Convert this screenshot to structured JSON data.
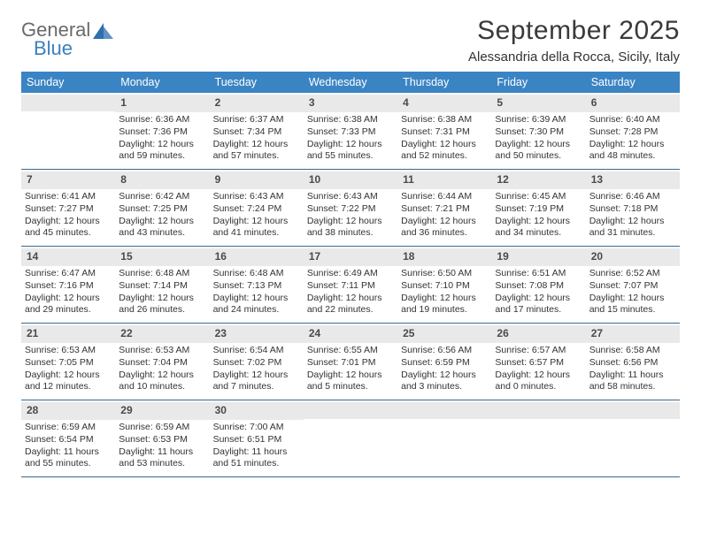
{
  "brand": {
    "name1": "General",
    "name2": "Blue",
    "mark_color": "#2f6fae"
  },
  "header": {
    "month_title": "September 2025",
    "location": "Alessandria della Rocca, Sicily, Italy"
  },
  "colors": {
    "header_bar": "#3b84c4",
    "day_num_bg": "#e9e9e9",
    "row_border": "#3b6a8f",
    "text": "#333333",
    "title": "#3a3a3a"
  },
  "dow": [
    "Sunday",
    "Monday",
    "Tuesday",
    "Wednesday",
    "Thursday",
    "Friday",
    "Saturday"
  ],
  "weeks": [
    [
      {
        "num": "",
        "lines": []
      },
      {
        "num": "1",
        "lines": [
          "Sunrise: 6:36 AM",
          "Sunset: 7:36 PM",
          "Daylight: 12 hours and 59 minutes."
        ]
      },
      {
        "num": "2",
        "lines": [
          "Sunrise: 6:37 AM",
          "Sunset: 7:34 PM",
          "Daylight: 12 hours and 57 minutes."
        ]
      },
      {
        "num": "3",
        "lines": [
          "Sunrise: 6:38 AM",
          "Sunset: 7:33 PM",
          "Daylight: 12 hours and 55 minutes."
        ]
      },
      {
        "num": "4",
        "lines": [
          "Sunrise: 6:38 AM",
          "Sunset: 7:31 PM",
          "Daylight: 12 hours and 52 minutes."
        ]
      },
      {
        "num": "5",
        "lines": [
          "Sunrise: 6:39 AM",
          "Sunset: 7:30 PM",
          "Daylight: 12 hours and 50 minutes."
        ]
      },
      {
        "num": "6",
        "lines": [
          "Sunrise: 6:40 AM",
          "Sunset: 7:28 PM",
          "Daylight: 12 hours and 48 minutes."
        ]
      }
    ],
    [
      {
        "num": "7",
        "lines": [
          "Sunrise: 6:41 AM",
          "Sunset: 7:27 PM",
          "Daylight: 12 hours and 45 minutes."
        ]
      },
      {
        "num": "8",
        "lines": [
          "Sunrise: 6:42 AM",
          "Sunset: 7:25 PM",
          "Daylight: 12 hours and 43 minutes."
        ]
      },
      {
        "num": "9",
        "lines": [
          "Sunrise: 6:43 AM",
          "Sunset: 7:24 PM",
          "Daylight: 12 hours and 41 minutes."
        ]
      },
      {
        "num": "10",
        "lines": [
          "Sunrise: 6:43 AM",
          "Sunset: 7:22 PM",
          "Daylight: 12 hours and 38 minutes."
        ]
      },
      {
        "num": "11",
        "lines": [
          "Sunrise: 6:44 AM",
          "Sunset: 7:21 PM",
          "Daylight: 12 hours and 36 minutes."
        ]
      },
      {
        "num": "12",
        "lines": [
          "Sunrise: 6:45 AM",
          "Sunset: 7:19 PM",
          "Daylight: 12 hours and 34 minutes."
        ]
      },
      {
        "num": "13",
        "lines": [
          "Sunrise: 6:46 AM",
          "Sunset: 7:18 PM",
          "Daylight: 12 hours and 31 minutes."
        ]
      }
    ],
    [
      {
        "num": "14",
        "lines": [
          "Sunrise: 6:47 AM",
          "Sunset: 7:16 PM",
          "Daylight: 12 hours and 29 minutes."
        ]
      },
      {
        "num": "15",
        "lines": [
          "Sunrise: 6:48 AM",
          "Sunset: 7:14 PM",
          "Daylight: 12 hours and 26 minutes."
        ]
      },
      {
        "num": "16",
        "lines": [
          "Sunrise: 6:48 AM",
          "Sunset: 7:13 PM",
          "Daylight: 12 hours and 24 minutes."
        ]
      },
      {
        "num": "17",
        "lines": [
          "Sunrise: 6:49 AM",
          "Sunset: 7:11 PM",
          "Daylight: 12 hours and 22 minutes."
        ]
      },
      {
        "num": "18",
        "lines": [
          "Sunrise: 6:50 AM",
          "Sunset: 7:10 PM",
          "Daylight: 12 hours and 19 minutes."
        ]
      },
      {
        "num": "19",
        "lines": [
          "Sunrise: 6:51 AM",
          "Sunset: 7:08 PM",
          "Daylight: 12 hours and 17 minutes."
        ]
      },
      {
        "num": "20",
        "lines": [
          "Sunrise: 6:52 AM",
          "Sunset: 7:07 PM",
          "Daylight: 12 hours and 15 minutes."
        ]
      }
    ],
    [
      {
        "num": "21",
        "lines": [
          "Sunrise: 6:53 AM",
          "Sunset: 7:05 PM",
          "Daylight: 12 hours and 12 minutes."
        ]
      },
      {
        "num": "22",
        "lines": [
          "Sunrise: 6:53 AM",
          "Sunset: 7:04 PM",
          "Daylight: 12 hours and 10 minutes."
        ]
      },
      {
        "num": "23",
        "lines": [
          "Sunrise: 6:54 AM",
          "Sunset: 7:02 PM",
          "Daylight: 12 hours and 7 minutes."
        ]
      },
      {
        "num": "24",
        "lines": [
          "Sunrise: 6:55 AM",
          "Sunset: 7:01 PM",
          "Daylight: 12 hours and 5 minutes."
        ]
      },
      {
        "num": "25",
        "lines": [
          "Sunrise: 6:56 AM",
          "Sunset: 6:59 PM",
          "Daylight: 12 hours and 3 minutes."
        ]
      },
      {
        "num": "26",
        "lines": [
          "Sunrise: 6:57 AM",
          "Sunset: 6:57 PM",
          "Daylight: 12 hours and 0 minutes."
        ]
      },
      {
        "num": "27",
        "lines": [
          "Sunrise: 6:58 AM",
          "Sunset: 6:56 PM",
          "Daylight: 11 hours and 58 minutes."
        ]
      }
    ],
    [
      {
        "num": "28",
        "lines": [
          "Sunrise: 6:59 AM",
          "Sunset: 6:54 PM",
          "Daylight: 11 hours and 55 minutes."
        ]
      },
      {
        "num": "29",
        "lines": [
          "Sunrise: 6:59 AM",
          "Sunset: 6:53 PM",
          "Daylight: 11 hours and 53 minutes."
        ]
      },
      {
        "num": "30",
        "lines": [
          "Sunrise: 7:00 AM",
          "Sunset: 6:51 PM",
          "Daylight: 11 hours and 51 minutes."
        ]
      },
      {
        "num": "",
        "lines": []
      },
      {
        "num": "",
        "lines": []
      },
      {
        "num": "",
        "lines": []
      },
      {
        "num": "",
        "lines": []
      }
    ]
  ]
}
